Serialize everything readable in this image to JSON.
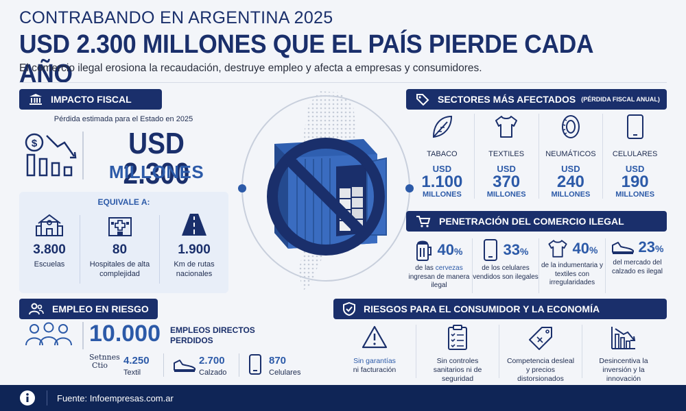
{
  "header": {
    "eyebrow": "CONTRABANDO EN ARGENTINA 2025",
    "title": "USD 2.300 MILLONES QUE EL PAÍS PIERDE CADA AÑO",
    "subtitle": "El comercio ilegal erosiona la recaudación, destruye empleo y afecta a empresas y consumidores."
  },
  "fiscal": {
    "section_title": "IMPACTO FISCAL",
    "caption": "Pérdida estimada para el Estado en 2025",
    "amount": "USD 2.300",
    "unit": "MILLONES",
    "equivale_title": "EQUIVALE A:",
    "equivalents": [
      {
        "value": "3.800",
        "label": "Escuelas",
        "icon": "school-icon"
      },
      {
        "value": "80",
        "label": "Hospitales de alta complejidad",
        "icon": "hospital-icon"
      },
      {
        "value": "1.900",
        "label": "Km de rutas nacionales",
        "icon": "road-icon"
      }
    ]
  },
  "sectors": {
    "section_title": "SECTORES MÁS AFECTADOS",
    "section_note": "(PÉRDIDA FISCAL ANUAL)",
    "items": [
      {
        "name": "TABACO",
        "currency": "USD",
        "value": "1.100",
        "unit": "MILLONES",
        "icon": "leaf-icon"
      },
      {
        "name": "TEXTILES",
        "currency": "USD",
        "value": "370",
        "unit": "MILLONES",
        "icon": "tshirt-icon"
      },
      {
        "name": "NEUMÁTICOS",
        "currency": "USD",
        "value": "240",
        "unit": "MILLONES",
        "icon": "tire-icon"
      },
      {
        "name": "CELULARES",
        "currency": "USD",
        "value": "190",
        "unit": "MILLONES",
        "icon": "phone-icon"
      }
    ]
  },
  "penetration": {
    "section_title": "PENETRACIÓN DEL COMERCIO ILEGAL",
    "items": [
      {
        "value": "40",
        "pct": "%",
        "label_pre": "de las ",
        "label_hl": "cervezas",
        "label_post": " ingresan de manera ilegal",
        "icon": "beer-icon"
      },
      {
        "value": "33",
        "pct": "%",
        "label": "de los celulares vendidos son ilegales",
        "icon": "phone-icon"
      },
      {
        "value": "40",
        "pct": "%",
        "label": "de la indumentaria y textiles con irregularidades",
        "icon": "tshirt-icon"
      },
      {
        "value": "23",
        "pct": "%",
        "label": "del mercado del calzado es ilegal",
        "icon": "shoe-icon"
      }
    ]
  },
  "employment": {
    "section_title": "EMPLEO EN RIESGO",
    "total": "10.000",
    "total_label": "EMPLEOS DIRECTOS PERDIDOS",
    "breakdown": [
      {
        "value": "4.250",
        "label": "Textil",
        "icon_text": "Setnnes",
        "icon_text2": "Ctio"
      },
      {
        "value": "2.700",
        "label": "Calzado"
      },
      {
        "value": "870",
        "label": "Celulares"
      }
    ]
  },
  "risks": {
    "section_title": "RIESGOS PARA EL CONSUMIDOR Y LA ECONOMÍA",
    "items": [
      {
        "label_hl": "Sin garantías",
        "label": "ni facturación",
        "icon": "warning-icon"
      },
      {
        "label": "Sin controles sanitarios ni de seguridad",
        "icon": "checklist-icon"
      },
      {
        "label": "Competencia desleal y precios distorsionados",
        "icon": "price-tag-icon"
      },
      {
        "label": "Desincentiva la inversión y la innovación",
        "icon": "declining-chart-icon"
      }
    ]
  },
  "footer": {
    "source": "Fuente: Infoempresas.com.ar"
  },
  "colors": {
    "navy": "#1a2f6b",
    "accent": "#2c5aa8",
    "footer": "#0f2556"
  }
}
